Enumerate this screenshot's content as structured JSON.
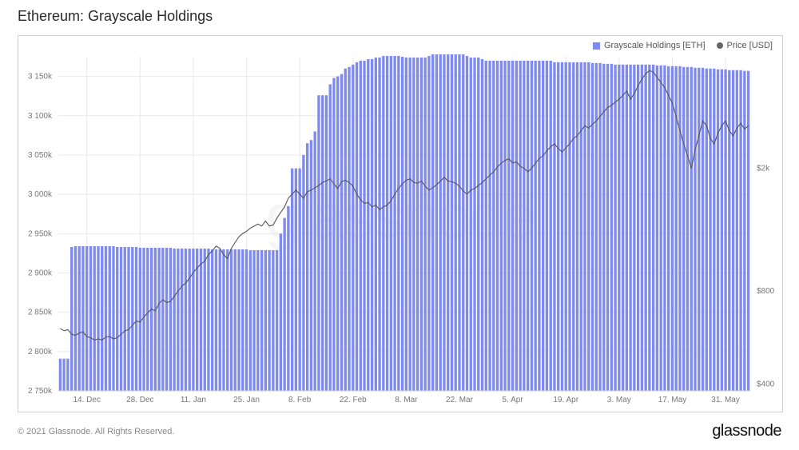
{
  "title": "Ethereum: Grayscale Holdings",
  "copyright": "© 2021 Glassnode. All Rights Reserved.",
  "brand": "glassnode",
  "watermark": "glassnode",
  "legend": {
    "bars": {
      "label": "Grayscale Holdings [ETH]",
      "color": "#7e8aee"
    },
    "line": {
      "label": "Price [USD]",
      "color": "#666666"
    }
  },
  "chart": {
    "type": "bar+line",
    "background": "#ffffff",
    "grid_color": "#e9e9e9",
    "baseline_color": "#cfcfcf",
    "bar_color": "#7e8aee",
    "bar_gap_ratio": 0.3,
    "line_color": "#555555",
    "line_width": 1.1,
    "title_fontsize": 18,
    "tick_fontsize": 10,
    "y_left": {
      "min": 2750000,
      "max": 3175000,
      "ticks": [
        {
          "v": 2750000,
          "label": "2 750k"
        },
        {
          "v": 2800000,
          "label": "2 800k"
        },
        {
          "v": 2850000,
          "label": "2 850k"
        },
        {
          "v": 2900000,
          "label": "2 900k"
        },
        {
          "v": 2950000,
          "label": "2 950k"
        },
        {
          "v": 3000000,
          "label": "3 000k"
        },
        {
          "v": 3050000,
          "label": "3 050k"
        },
        {
          "v": 3100000,
          "label": "3 100k"
        },
        {
          "v": 3150000,
          "label": "3 150k"
        }
      ]
    },
    "y_right": {
      "scale": "log",
      "min": 380,
      "max": 4600,
      "ticks": [
        {
          "v": 400,
          "label": "$400"
        },
        {
          "v": 800,
          "label": "$800"
        },
        {
          "v": 2000,
          "label": "$2k"
        }
      ]
    },
    "x_ticks": [
      {
        "i": 7,
        "label": "14. Dec"
      },
      {
        "i": 21,
        "label": "28. Dec"
      },
      {
        "i": 35,
        "label": "11. Jan"
      },
      {
        "i": 49,
        "label": "25. Jan"
      },
      {
        "i": 63,
        "label": "8. Feb"
      },
      {
        "i": 77,
        "label": "22. Feb"
      },
      {
        "i": 91,
        "label": "8. Mar"
      },
      {
        "i": 105,
        "label": "22. Mar"
      },
      {
        "i": 119,
        "label": "5. Apr"
      },
      {
        "i": 133,
        "label": "19. Apr"
      },
      {
        "i": 147,
        "label": "3. May"
      },
      {
        "i": 161,
        "label": "17. May"
      },
      {
        "i": 175,
        "label": "31. May"
      }
    ],
    "n_points": 182,
    "holdings": [
      2791000,
      2791000,
      2791000,
      2933000,
      2934000,
      2934000,
      2934000,
      2934000,
      2934000,
      2934000,
      2934000,
      2934000,
      2934000,
      2934000,
      2934000,
      2933000,
      2933000,
      2933000,
      2933000,
      2933000,
      2933000,
      2932000,
      2932000,
      2932000,
      2932000,
      2932000,
      2932000,
      2932000,
      2932000,
      2932000,
      2931000,
      2931000,
      2931000,
      2931000,
      2931000,
      2931000,
      2931000,
      2931000,
      2931000,
      2931000,
      2930000,
      2930000,
      2930000,
      2930000,
      2930000,
      2930000,
      2930000,
      2930000,
      2930000,
      2930000,
      2929000,
      2929000,
      2929000,
      2929000,
      2929000,
      2929000,
      2929000,
      2929000,
      2950000,
      2970000,
      2985000,
      3033000,
      3033000,
      3033000,
      3050000,
      3065000,
      3069000,
      3080000,
      3126000,
      3126000,
      3126000,
      3140000,
      3148000,
      3150000,
      3153000,
      3160000,
      3162000,
      3165000,
      3168000,
      3170000,
      3170000,
      3172000,
      3172000,
      3174000,
      3174000,
      3176000,
      3176000,
      3176000,
      3176000,
      3176000,
      3175000,
      3174000,
      3174000,
      3174000,
      3174000,
      3174000,
      3174000,
      3176000,
      3178000,
      3178000,
      3178000,
      3178000,
      3178000,
      3178000,
      3178000,
      3178000,
      3178000,
      3176000,
      3174000,
      3174000,
      3174000,
      3172000,
      3170000,
      3170000,
      3170000,
      3170000,
      3170000,
      3170000,
      3170000,
      3170000,
      3170000,
      3170000,
      3170000,
      3170000,
      3170000,
      3170000,
      3170000,
      3170000,
      3170000,
      3170000,
      3168000,
      3168000,
      3168000,
      3168000,
      3168000,
      3168000,
      3168000,
      3168000,
      3168000,
      3168000,
      3167000,
      3167000,
      3167000,
      3166000,
      3166000,
      3166000,
      3165000,
      3165000,
      3165000,
      3165000,
      3165000,
      3165000,
      3165000,
      3165000,
      3165000,
      3165000,
      3165000,
      3164000,
      3164000,
      3164000,
      3163000,
      3163000,
      3163000,
      3163000,
      3162000,
      3162000,
      3162000,
      3161000,
      3161000,
      3161000,
      3160000,
      3160000,
      3160000,
      3159000,
      3159000,
      3159000,
      3158000,
      3158000,
      3158000,
      3158000,
      3157000,
      3157000
    ],
    "price": [
      605,
      595,
      600,
      580,
      575,
      585,
      590,
      570,
      565,
      555,
      560,
      555,
      568,
      570,
      560,
      565,
      580,
      595,
      600,
      620,
      640,
      635,
      660,
      680,
      700,
      690,
      730,
      750,
      735,
      740,
      770,
      800,
      830,
      850,
      880,
      920,
      950,
      980,
      1000,
      1050,
      1080,
      1120,
      1100,
      1050,
      1020,
      1100,
      1150,
      1200,
      1230,
      1250,
      1280,
      1300,
      1320,
      1300,
      1350,
      1300,
      1310,
      1380,
      1440,
      1500,
      1600,
      1650,
      1700,
      1650,
      1600,
      1680,
      1700,
      1730,
      1760,
      1800,
      1820,
      1850,
      1780,
      1720,
      1810,
      1830,
      1800,
      1750,
      1650,
      1580,
      1540,
      1550,
      1500,
      1520,
      1470,
      1500,
      1520,
      1570,
      1650,
      1720,
      1780,
      1830,
      1850,
      1800,
      1790,
      1820,
      1750,
      1700,
      1730,
      1770,
      1820,
      1870,
      1820,
      1810,
      1790,
      1750,
      1690,
      1650,
      1700,
      1720,
      1760,
      1800,
      1850,
      1900,
      1950,
      2020,
      2080,
      2120,
      2150,
      2080,
      2100,
      2030,
      2000,
      1950,
      2000,
      2080,
      2150,
      2200,
      2280,
      2350,
      2400,
      2320,
      2260,
      2330,
      2400,
      2500,
      2550,
      2650,
      2750,
      2700,
      2780,
      2850,
      2950,
      3050,
      3150,
      3200,
      3280,
      3350,
      3450,
      3560,
      3350,
      3500,
      3700,
      3900,
      4050,
      4150,
      4100,
      3950,
      3800,
      3650,
      3450,
      3250,
      2950,
      2650,
      2400,
      2200,
      2000,
      2300,
      2550,
      2850,
      2750,
      2500,
      2400,
      2600,
      2750,
      2850,
      2650,
      2550,
      2700,
      2800,
      2680,
      2750
    ]
  }
}
